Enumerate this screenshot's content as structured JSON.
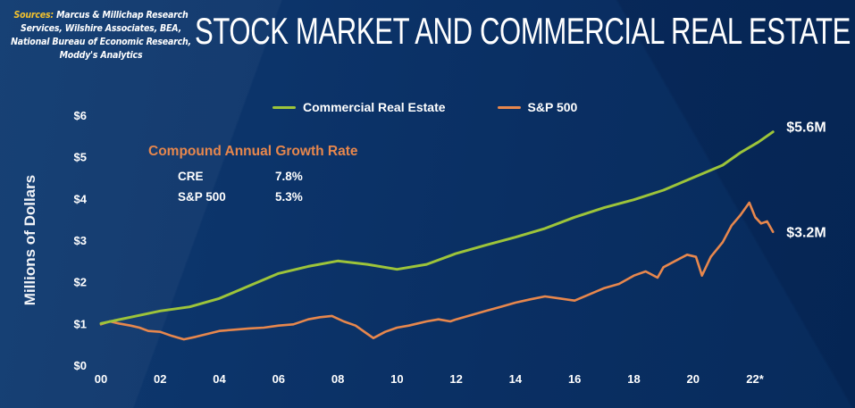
{
  "sources": {
    "label": "Sources:",
    "text": " Marcus & Millichap Research Services, Wilshire Associates, BEA, National Bureau of Economic Research, Moddy's Analytics"
  },
  "title": "STOCK MARKET AND COMMERCIAL REAL ESTATE",
  "legend": [
    {
      "label": "Commercial Real Estate",
      "color": "#9dc43a"
    },
    {
      "label": "S&P 500",
      "color": "#e7874d"
    }
  ],
  "cagr": {
    "title": "Compound Annual Growth Rate",
    "rows": [
      {
        "name": "CRE",
        "value": "7.8%"
      },
      {
        "name": "S&P 500",
        "value": "5.3%"
      }
    ]
  },
  "end_labels": {
    "cre": "$5.6M",
    "sp500": "$3.2M"
  },
  "chart_data": {
    "type": "line",
    "title": "STOCK MARKET AND COMMERCIAL REAL ESTATE",
    "xlabel": "",
    "ylabel": "Millions of Dollars",
    "ylim": [
      0,
      6
    ],
    "xlim": [
      2000,
      2023
    ],
    "grid": false,
    "legend_position": "top-center",
    "x_ticks": [
      {
        "value": 2000,
        "label": "00"
      },
      {
        "value": 2002,
        "label": "02"
      },
      {
        "value": 2004,
        "label": "04"
      },
      {
        "value": 2006,
        "label": "06"
      },
      {
        "value": 2008,
        "label": "08"
      },
      {
        "value": 2010,
        "label": "10"
      },
      {
        "value": 2012,
        "label": "12"
      },
      {
        "value": 2014,
        "label": "14"
      },
      {
        "value": 2016,
        "label": "16"
      },
      {
        "value": 2018,
        "label": "18"
      },
      {
        "value": 2020,
        "label": "20"
      },
      {
        "value": 2022,
        "label": "22*"
      }
    ],
    "y_ticks": [
      {
        "value": 0,
        "label": "$0"
      },
      {
        "value": 1,
        "label": "$1"
      },
      {
        "value": 2,
        "label": "$2"
      },
      {
        "value": 3,
        "label": "$3"
      },
      {
        "value": 4,
        "label": "$4"
      },
      {
        "value": 5,
        "label": "$5"
      },
      {
        "value": 6,
        "label": "$6"
      }
    ],
    "series": [
      {
        "name": "Commercial Real Estate",
        "color": "#9dc43a",
        "end_label": "$5.6M",
        "x": [
          2000,
          2001,
          2002,
          2003,
          2004,
          2005,
          2006,
          2007,
          2008,
          2009,
          2010,
          2011,
          2012,
          2013,
          2014,
          2015,
          2016,
          2017,
          2018,
          2019,
          2020,
          2021,
          2021.6,
          2022.2,
          2022.7
        ],
        "values": [
          1.0,
          1.15,
          1.3,
          1.4,
          1.6,
          1.9,
          2.2,
          2.37,
          2.5,
          2.42,
          2.3,
          2.42,
          2.68,
          2.88,
          3.07,
          3.28,
          3.55,
          3.78,
          3.97,
          4.2,
          4.5,
          4.8,
          5.1,
          5.35,
          5.6
        ]
      },
      {
        "name": "S&P 500",
        "color": "#e7874d",
        "end_label": "$3.2M",
        "x": [
          2000,
          2000.3,
          2000.6,
          2001,
          2001.3,
          2001.6,
          2002,
          2002.4,
          2002.8,
          2003.2,
          2003.6,
          2004,
          2004.5,
          2005,
          2005.5,
          2006,
          2006.5,
          2007,
          2007.4,
          2007.8,
          2008.2,
          2008.6,
          2009,
          2009.2,
          2009.6,
          2010,
          2010.4,
          2010.7,
          2011,
          2011.4,
          2011.8,
          2012,
          2012.5,
          2013,
          2013.5,
          2014,
          2014.5,
          2015,
          2015.5,
          2016,
          2016.5,
          2017,
          2017.5,
          2018,
          2018.4,
          2018.8,
          2019,
          2019.4,
          2019.8,
          2020.1,
          2020.3,
          2020.6,
          2021,
          2021.3,
          2021.6,
          2021.9,
          2022.1,
          2022.3,
          2022.5,
          2022.7
        ],
        "values": [
          0.98,
          1.05,
          1.0,
          0.95,
          0.9,
          0.82,
          0.8,
          0.7,
          0.62,
          0.68,
          0.75,
          0.82,
          0.85,
          0.88,
          0.9,
          0.95,
          0.98,
          1.1,
          1.15,
          1.18,
          1.05,
          0.95,
          0.75,
          0.65,
          0.8,
          0.9,
          0.95,
          1.0,
          1.05,
          1.1,
          1.05,
          1.1,
          1.2,
          1.3,
          1.4,
          1.5,
          1.58,
          1.65,
          1.6,
          1.55,
          1.7,
          1.85,
          1.95,
          2.15,
          2.25,
          2.1,
          2.35,
          2.5,
          2.65,
          2.6,
          2.15,
          2.6,
          2.95,
          3.35,
          3.6,
          3.9,
          3.55,
          3.4,
          3.45,
          3.2
        ]
      }
    ]
  }
}
